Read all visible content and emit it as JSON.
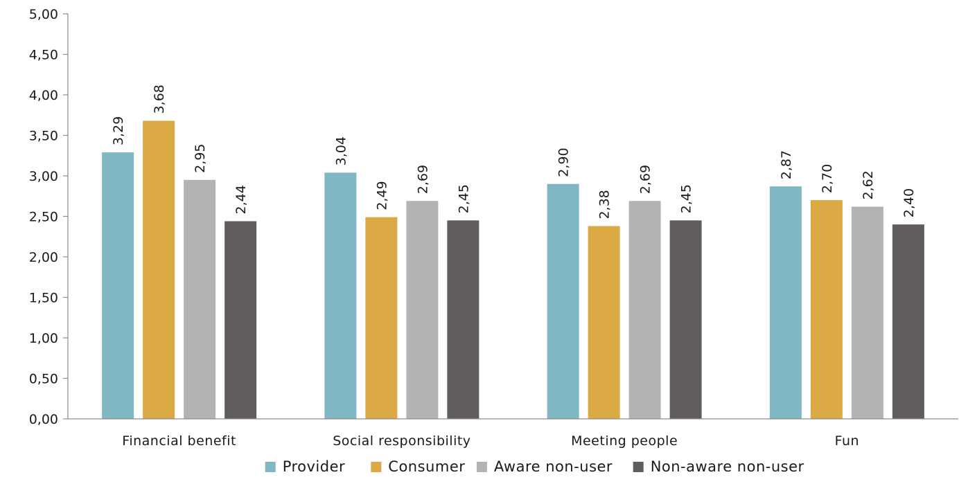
{
  "chart_data": {
    "type": "bar",
    "categories": [
      "Financial benefit",
      "Social responsibility",
      "Meeting people",
      "Fun"
    ],
    "series": [
      {
        "name": "Provider",
        "color": "#7fb7c3",
        "values": [
          3.29,
          3.04,
          2.9,
          2.87
        ],
        "labels": [
          "3,29",
          "3,04",
          "2,90",
          "2,87"
        ]
      },
      {
        "name": "Consumer",
        "color": "#dcaa45",
        "values": [
          3.68,
          2.49,
          2.38,
          2.7
        ],
        "labels": [
          "3,68",
          "2,49",
          "2,38",
          "2,70"
        ]
      },
      {
        "name": "Aware non-user",
        "color": "#b3b3b3",
        "values": [
          2.95,
          2.69,
          2.69,
          2.62
        ],
        "labels": [
          "2,95",
          "2,69",
          "2,69",
          "2,62"
        ]
      },
      {
        "name": "Non-aware non-user",
        "color": "#615d5d",
        "values": [
          2.44,
          2.45,
          2.45,
          2.4
        ],
        "labels": [
          "2,44",
          "2,45",
          "2,45",
          "2,40"
        ]
      }
    ],
    "ylim": [
      0,
      5
    ],
    "yticks": [
      0,
      0.5,
      1,
      1.5,
      2,
      2.5,
      3,
      3.5,
      4,
      4.5,
      5
    ],
    "ytick_labels": [
      "0,00",
      "0,50",
      "1,00",
      "1,50",
      "2,00",
      "2,50",
      "3,00",
      "3,50",
      "4,00",
      "4,50",
      "5,00"
    ],
    "title": "",
    "xlabel": "",
    "ylabel": "",
    "grid": false,
    "legend_position": "bottom"
  }
}
